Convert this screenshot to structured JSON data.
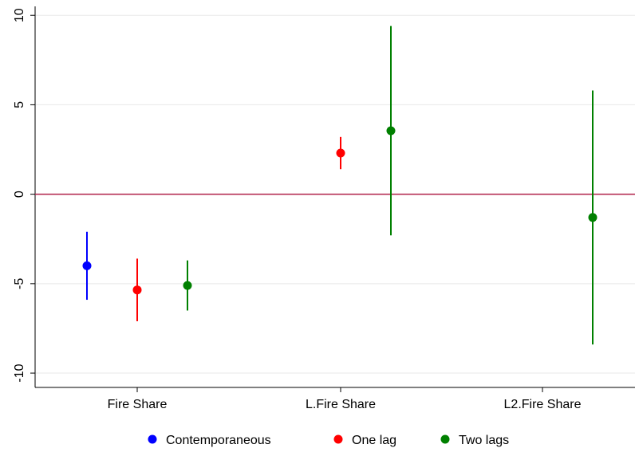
{
  "chart_data": {
    "type": "scatter",
    "subtype": "coefficient-plot-with-confidence-intervals",
    "categories": [
      "Fire Share",
      "L.Fire Share",
      "L2.Fire Share"
    ],
    "ylim": [
      -10.8,
      10.5
    ],
    "yticks": [
      10,
      5,
      0,
      -5,
      -10
    ],
    "ytick_labels": [
      "10",
      "5",
      "0",
      "-5",
      "-10"
    ],
    "grid": true,
    "reference_line": {
      "y": 0,
      "color": "#b0204a"
    },
    "legend_position": "bottom",
    "series": [
      {
        "name": "Contemporaneous",
        "color": "#0000ff",
        "points": [
          {
            "category": "Fire Share",
            "estimate": -4.0,
            "lower": -5.9,
            "upper": -2.1
          }
        ]
      },
      {
        "name": "One lag",
        "color": "#ff0000",
        "points": [
          {
            "category": "Fire Share",
            "estimate": -5.35,
            "lower": -7.1,
            "upper": -3.6
          },
          {
            "category": "L.Fire Share",
            "estimate": 2.3,
            "lower": 1.4,
            "upper": 3.2
          }
        ]
      },
      {
        "name": "Two lags",
        "color": "#008000",
        "points": [
          {
            "category": "Fire Share",
            "estimate": -5.1,
            "lower": -6.5,
            "upper": -3.7
          },
          {
            "category": "L.Fire Share",
            "estimate": 3.55,
            "lower": -2.3,
            "upper": 9.4
          },
          {
            "category": "L2.Fire Share",
            "estimate": -1.3,
            "lower": -8.4,
            "upper": 5.8
          }
        ]
      }
    ]
  }
}
